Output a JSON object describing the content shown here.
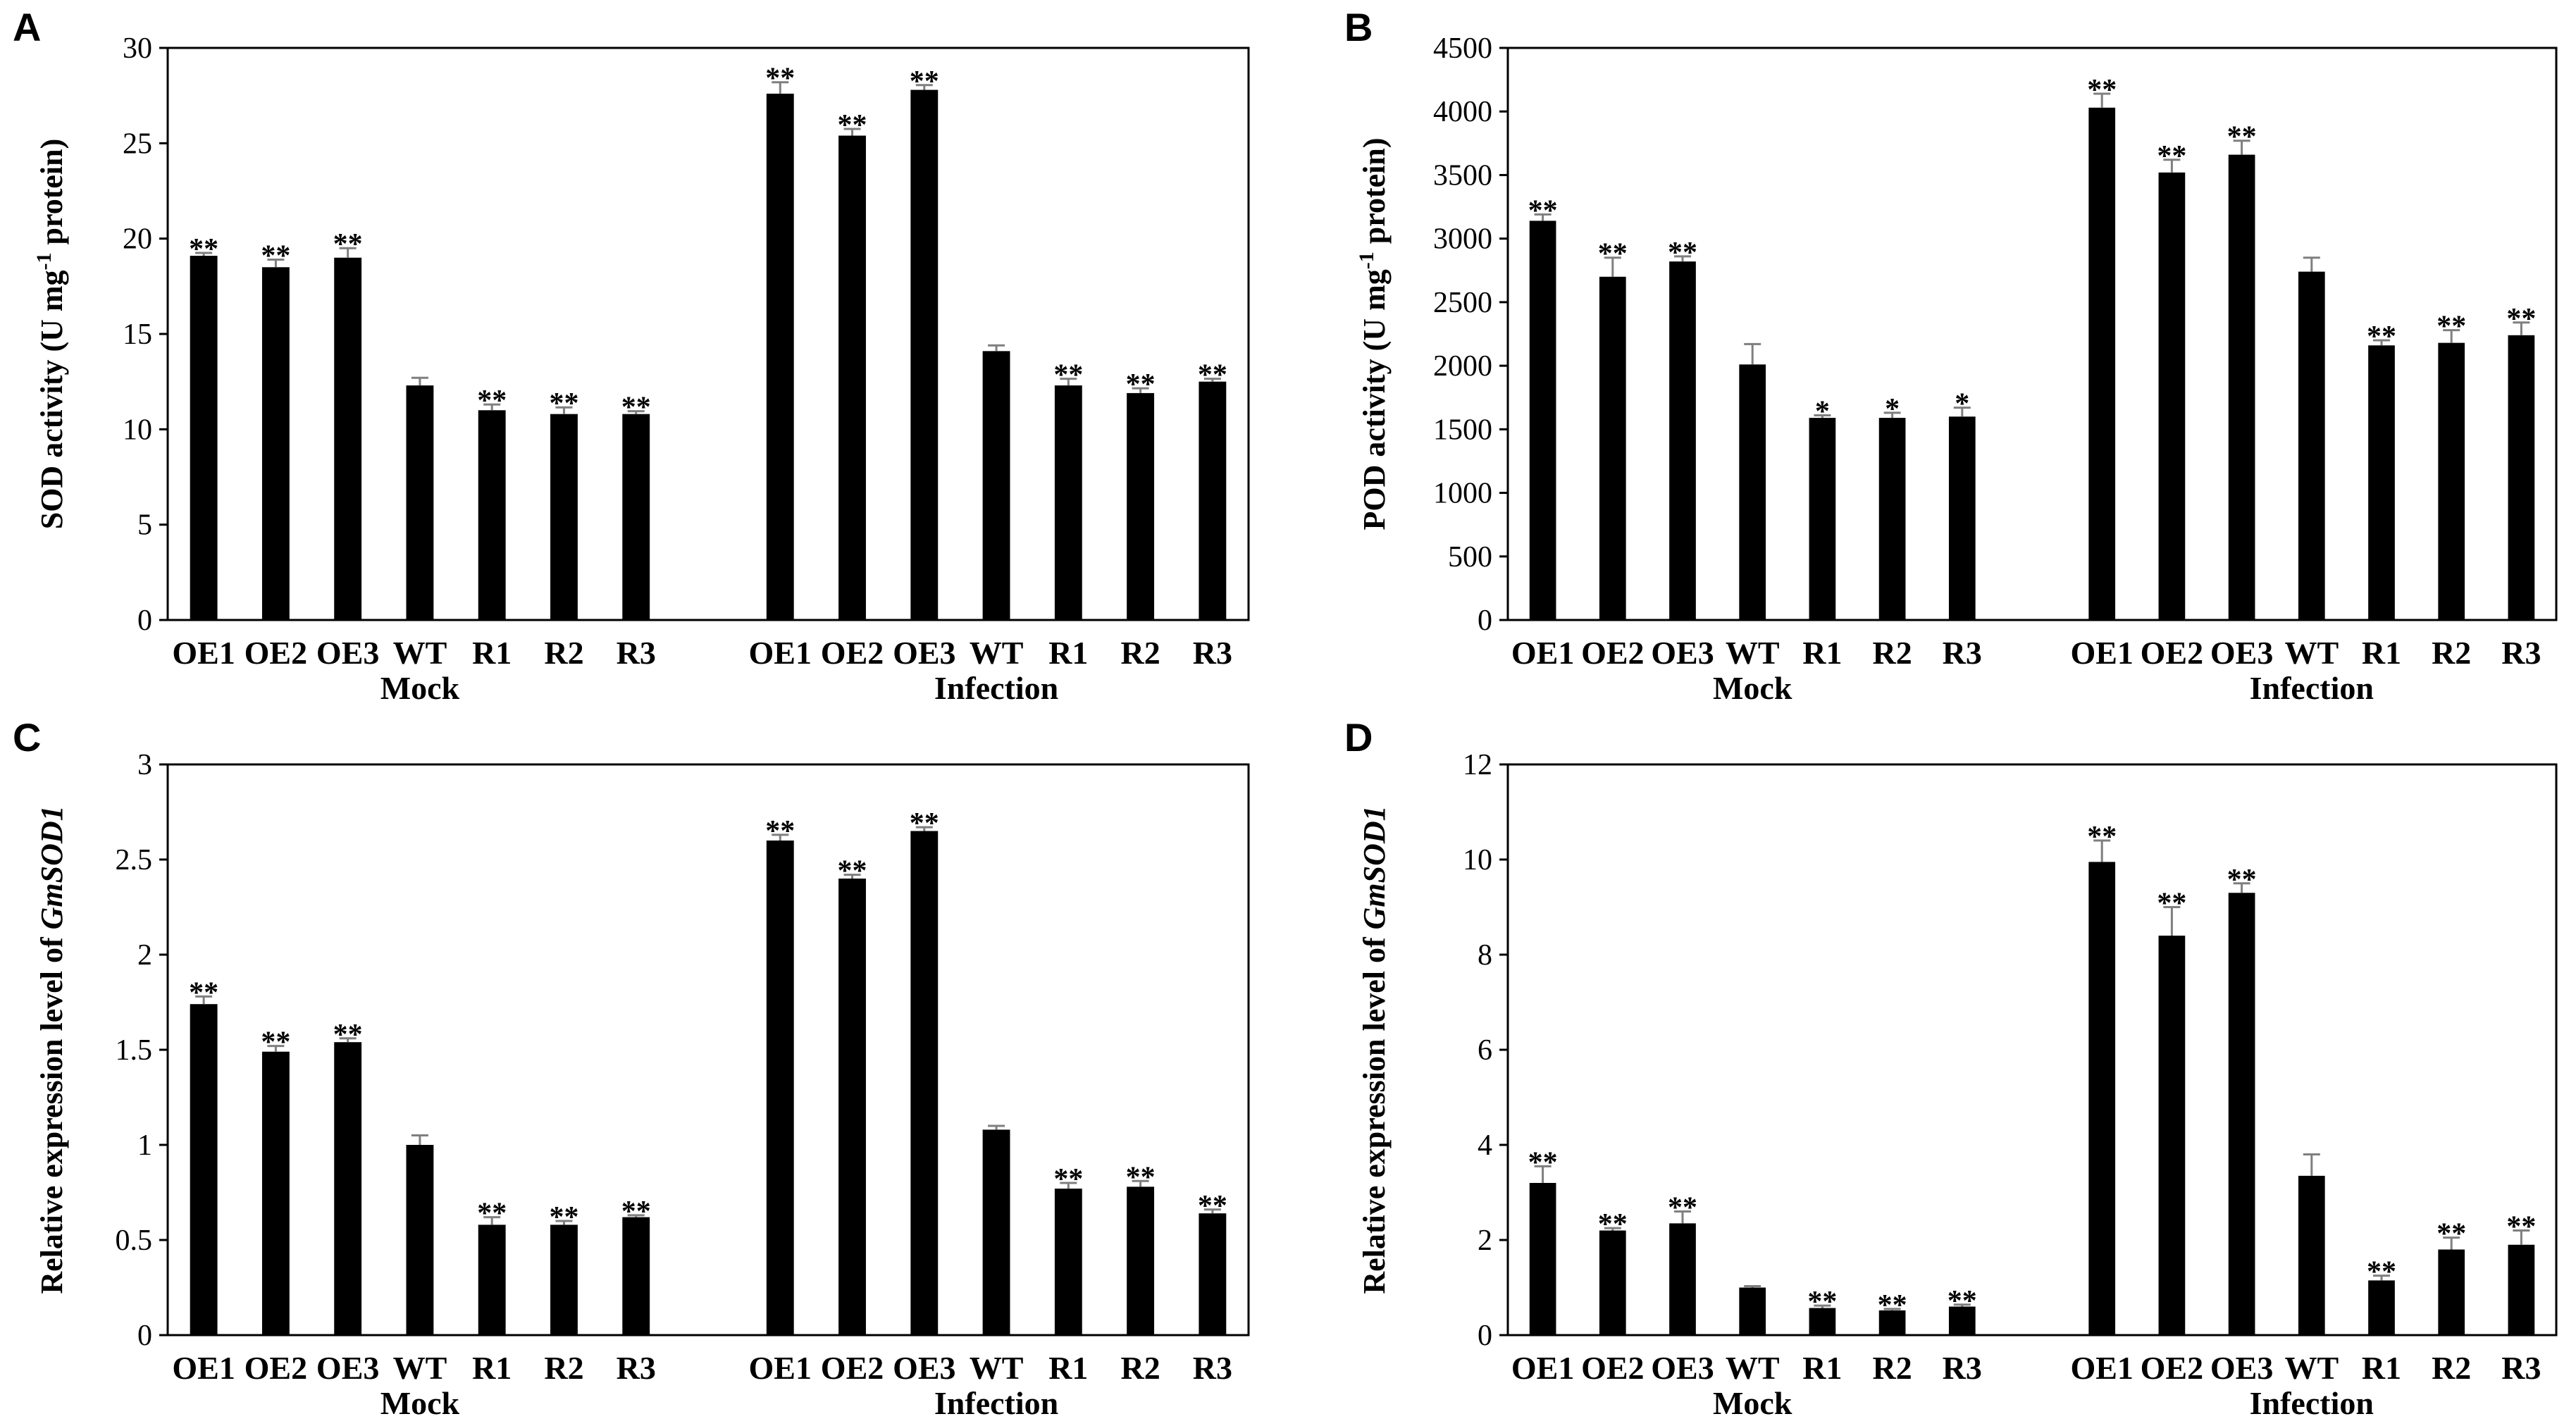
{
  "figure": {
    "colors": {
      "bar": "#000000",
      "error_bar": "#7f7f7f",
      "axis": "#000000",
      "background": "#ffffff"
    }
  },
  "chart_data": [
    {
      "panel": "A",
      "type": "bar",
      "ylabel": {
        "prefix": "SOD activity (U mg",
        "sup": "-1",
        "suffix": " protein)"
      },
      "ylim": [
        0,
        30
      ],
      "yticks": [
        0,
        5,
        10,
        15,
        20,
        25,
        30
      ],
      "ytick_labels": [
        "0",
        "5",
        "10",
        "15",
        "20",
        "25",
        "30"
      ],
      "groups": [
        {
          "label": "Mock",
          "categories": [
            "OE1",
            "OE2",
            "OE3",
            "WT",
            "R1",
            "R2",
            "R3"
          ],
          "values": [
            19.1,
            18.5,
            19.0,
            12.3,
            11.0,
            10.8,
            10.8
          ],
          "errors": [
            0.15,
            0.4,
            0.5,
            0.4,
            0.3,
            0.35,
            0.15
          ],
          "significance": [
            "**",
            "**",
            "**",
            "",
            "**",
            "**",
            "**"
          ]
        },
        {
          "label": "Infection",
          "categories": [
            "OE1",
            "OE2",
            "OE3",
            "WT",
            "R1",
            "R2",
            "R3"
          ],
          "values": [
            27.6,
            25.4,
            27.8,
            14.1,
            12.3,
            11.9,
            12.5
          ],
          "errors": [
            0.6,
            0.35,
            0.25,
            0.3,
            0.35,
            0.25,
            0.15
          ],
          "significance": [
            "**",
            "**",
            "**",
            "",
            "**",
            "**",
            "**"
          ]
        }
      ]
    },
    {
      "panel": "B",
      "type": "bar",
      "ylabel": {
        "prefix": "POD activity (U mg",
        "sup": "-1",
        "suffix": " protein)"
      },
      "ylim": [
        0,
        4500
      ],
      "yticks": [
        0,
        500,
        1000,
        1500,
        2000,
        2500,
        3000,
        3500,
        4000,
        4500
      ],
      "ytick_labels": [
        "0",
        "500",
        "1000",
        "1500",
        "2000",
        "2500",
        "3000",
        "3500",
        "4000",
        "4500"
      ],
      "groups": [
        {
          "label": "Mock",
          "categories": [
            "OE1",
            "OE2",
            "OE3",
            "WT",
            "R1",
            "R2",
            "R3"
          ],
          "values": [
            3140,
            2700,
            2820,
            2010,
            1590,
            1590,
            1600
          ],
          "errors": [
            50,
            150,
            40,
            160,
            20,
            40,
            70
          ],
          "significance": [
            "**",
            "**",
            "**",
            "",
            "*",
            "*",
            "*"
          ]
        },
        {
          "label": "Infection",
          "categories": [
            "OE1",
            "OE2",
            "OE3",
            "WT",
            "R1",
            "R2",
            "R3"
          ],
          "values": [
            4030,
            3520,
            3660,
            2740,
            2160,
            2180,
            2240
          ],
          "errors": [
            110,
            100,
            110,
            110,
            40,
            100,
            100
          ],
          "significance": [
            "**",
            "**",
            "**",
            "",
            "**",
            "**",
            "**"
          ]
        }
      ]
    },
    {
      "panel": "C",
      "type": "bar",
      "ylabel": {
        "prefix": "Relative expression level of ",
        "italic": "GmSOD1"
      },
      "ylim": [
        0,
        3
      ],
      "yticks": [
        0,
        0.5,
        1,
        1.5,
        2,
        2.5,
        3
      ],
      "ytick_labels": [
        "0",
        "0.5",
        "1",
        "1.5",
        "2",
        "2.5",
        "3"
      ],
      "groups": [
        {
          "label": "Mock",
          "categories": [
            "OE1",
            "OE2",
            "OE3",
            "WT",
            "R1",
            "R2",
            "R3"
          ],
          "values": [
            1.74,
            1.49,
            1.54,
            1.0,
            0.58,
            0.58,
            0.62
          ],
          "errors": [
            0.04,
            0.03,
            0.02,
            0.05,
            0.04,
            0.02,
            0.01
          ],
          "significance": [
            "**",
            "**",
            "**",
            "",
            "**",
            "**",
            "**"
          ]
        },
        {
          "label": "Infection",
          "categories": [
            "OE1",
            "OE2",
            "OE3",
            "WT",
            "R1",
            "R2",
            "R3"
          ],
          "values": [
            2.6,
            2.4,
            2.65,
            1.08,
            0.77,
            0.78,
            0.64
          ],
          "errors": [
            0.03,
            0.02,
            0.02,
            0.02,
            0.03,
            0.03,
            0.02
          ],
          "significance": [
            "**",
            "**",
            "**",
            "",
            "**",
            "**",
            "**"
          ]
        }
      ]
    },
    {
      "panel": "D",
      "type": "bar",
      "ylabel": {
        "prefix": "Relative expression level of ",
        "italic": "GmSOD1"
      },
      "ylim": [
        0,
        12
      ],
      "yticks": [
        0,
        2,
        4,
        6,
        8,
        10,
        12
      ],
      "ytick_labels": [
        "0",
        "2",
        "4",
        "6",
        "8",
        "10",
        "12"
      ],
      "groups": [
        {
          "label": "Mock",
          "categories": [
            "OE1",
            "OE2",
            "OE3",
            "WT",
            "R1",
            "R2",
            "R3"
          ],
          "values": [
            3.2,
            2.2,
            2.35,
            1.0,
            0.57,
            0.52,
            0.6
          ],
          "errors": [
            0.35,
            0.05,
            0.25,
            0.03,
            0.05,
            0.03,
            0.04
          ],
          "significance": [
            "**",
            "**",
            "**",
            "",
            "**",
            "**",
            "**"
          ]
        },
        {
          "label": "Infection",
          "categories": [
            "OE1",
            "OE2",
            "OE3",
            "WT",
            "R1",
            "R2",
            "R3"
          ],
          "values": [
            9.95,
            8.4,
            9.3,
            3.35,
            1.15,
            1.8,
            1.9
          ],
          "errors": [
            0.45,
            0.6,
            0.2,
            0.45,
            0.1,
            0.25,
            0.3
          ],
          "significance": [
            "**",
            "**",
            "**",
            "",
            "**",
            "**",
            "**"
          ]
        }
      ]
    }
  ]
}
